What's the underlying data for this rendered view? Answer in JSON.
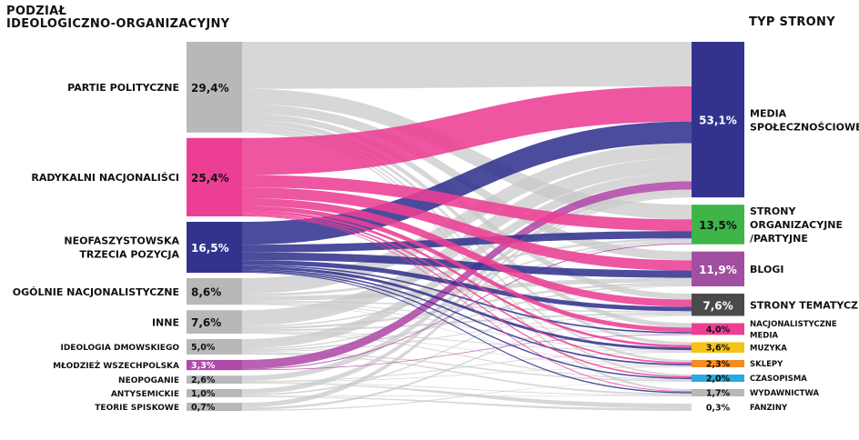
{
  "headers": {
    "left_line1": "PODZIAŁ",
    "left_line2": "IDEOLOGICZNO-ORGANIZACYJNY",
    "right": "TYP STRONY"
  },
  "colors": {
    "gray": "#c8c8c8",
    "gray_node": "#b8b8b8",
    "pink": "#ec3f94",
    "navy": "#33338f",
    "magenta": "#b04ba8",
    "green": "#3fb549",
    "purple": "#a14fa0",
    "darkgray": "#4a4a4a",
    "yellow": "#f4c319",
    "orange": "#f58c23",
    "lightblue": "#29abe2"
  },
  "chart_data": {
    "type": "sankey",
    "title": "",
    "sources": [
      {
        "id": "partie",
        "label_lines": [
          "PARTIE POLITYCZNE"
        ],
        "value_label": "29,4%",
        "value": 29.4,
        "color": "#b8b8b8",
        "flow_color": "#c8c8c8",
        "text_color": "#111"
      },
      {
        "id": "radykalni",
        "label_lines": [
          "RADYKALNI NACJONALIŚCI"
        ],
        "value_label": "25,4%",
        "value": 25.4,
        "color": "#ec3f94",
        "flow_color": "#ec3f94",
        "text_color": "#111"
      },
      {
        "id": "neofaszyst",
        "label_lines": [
          "NEOFASZYSTOWSKA",
          "TRZECIA POZYCJA"
        ],
        "value_label": "16,5%",
        "value": 16.5,
        "color": "#33338f",
        "flow_color": "#33338f",
        "text_color": "#ffffff"
      },
      {
        "id": "ogolnie",
        "label_lines": [
          "OGÓLNIE NACJONALISTYCZNE"
        ],
        "value_label": "8,6%",
        "value": 8.6,
        "color": "#b8b8b8",
        "flow_color": "#c8c8c8",
        "text_color": "#111"
      },
      {
        "id": "inne",
        "label_lines": [
          "INNE"
        ],
        "value_label": "7,6%",
        "value": 7.6,
        "color": "#b8b8b8",
        "flow_color": "#c8c8c8",
        "text_color": "#111"
      },
      {
        "id": "dmowski",
        "label_lines": [
          "IDEOLOGIA DMOWSKIEGO"
        ],
        "value_label": "5,0%",
        "value": 5.0,
        "color": "#b8b8b8",
        "flow_color": "#c8c8c8",
        "text_color": "#111"
      },
      {
        "id": "mlodziez",
        "label_lines": [
          "MŁODZIEŻ WSZECHPOLSKA"
        ],
        "value_label": "3,3%",
        "value": 3.3,
        "color": "#b04ba8",
        "flow_color": "#b04ba8",
        "text_color": "#ffffff"
      },
      {
        "id": "neopoganie",
        "label_lines": [
          "NEOPOGANIE"
        ],
        "value_label": "2,6%",
        "value": 2.6,
        "color": "#b8b8b8",
        "flow_color": "#c8c8c8",
        "text_color": "#111"
      },
      {
        "id": "antysemickie",
        "label_lines": [
          "ANTYSEMICKIE"
        ],
        "value_label": "1,0%",
        "value": 1.0,
        "color": "#b8b8b8",
        "flow_color": "#c8c8c8",
        "text_color": "#111"
      },
      {
        "id": "spiskowe",
        "label_lines": [
          "TEORIE SPISKOWE"
        ],
        "value_label": "0,7%",
        "value": 0.7,
        "color": "#b8b8b8",
        "flow_color": "#c8c8c8",
        "text_color": "#111"
      }
    ],
    "targets": [
      {
        "id": "media_spol",
        "label_lines": [
          "MEDIA",
          "SPOŁECZNOŚCIOWE"
        ],
        "value_label": "53,1%",
        "value": 53.1,
        "color": "#33338f",
        "text_color": "#ffffff"
      },
      {
        "id": "strony_org",
        "label_lines": [
          "STRONY",
          "ORGANIZACYJNE",
          "/PARTYJNE"
        ],
        "value_label": "13,5%",
        "value": 13.5,
        "color": "#3fb549",
        "text_color": "#111"
      },
      {
        "id": "blogi",
        "label_lines": [
          "BLOGI"
        ],
        "value_label": "11,9%",
        "value": 11.9,
        "color": "#a14fa0",
        "text_color": "#ffffff"
      },
      {
        "id": "strony_tem",
        "label_lines": [
          "STRONY TEMATYCZNE"
        ],
        "value_label": "7,6%",
        "value": 7.6,
        "color": "#4a4a4a",
        "text_color": "#ffffff"
      },
      {
        "id": "nacj_media",
        "label_lines": [
          "NACJONALISTYCZNE",
          "MEDIA"
        ],
        "value_label": "4,0%",
        "value": 4.0,
        "color": "#ec3f94",
        "text_color": "#111"
      },
      {
        "id": "muzyka",
        "label_lines": [
          "MUZYKA"
        ],
        "value_label": "3,6%",
        "value": 3.6,
        "color": "#f4c319",
        "text_color": "#111"
      },
      {
        "id": "sklepy",
        "label_lines": [
          "SKLEPY"
        ],
        "value_label": "2,3%",
        "value": 2.3,
        "color": "#f58c23",
        "text_color": "#111"
      },
      {
        "id": "czasopisma",
        "label_lines": [
          "CZASOPISMA"
        ],
        "value_label": "2,0%",
        "value": 2.0,
        "color": "#29abe2",
        "text_color": "#111"
      },
      {
        "id": "wydawnictwa",
        "label_lines": [
          "WYDAWNICTWA"
        ],
        "value_label": "1,7%",
        "value": 1.7,
        "color": "#b8b8b8",
        "text_color": "#111"
      },
      {
        "id": "fanziny",
        "label_lines": [
          "FANZINY"
        ],
        "value_label": "0,3%",
        "value": 0.3,
        "color": "#ffffff",
        "text_color": "#111"
      }
    ],
    "flows": [
      {
        "source": "partie",
        "target": "media_spol",
        "value": 15.2
      },
      {
        "source": "partie",
        "target": "strony_org",
        "value": 5.0
      },
      {
        "source": "partie",
        "target": "blogi",
        "value": 3.0
      },
      {
        "source": "partie",
        "target": "strony_tem",
        "value": 2.0
      },
      {
        "source": "partie",
        "target": "nacj_media",
        "value": 1.5
      },
      {
        "source": "partie",
        "target": "muzyka",
        "value": 1.0
      },
      {
        "source": "partie",
        "target": "sklepy",
        "value": 0.7
      },
      {
        "source": "partie",
        "target": "czasopisma",
        "value": 0.5
      },
      {
        "source": "partie",
        "target": "wydawnictwa",
        "value": 0.5
      },
      {
        "source": "radykalni",
        "target": "media_spol",
        "value": 12.0
      },
      {
        "source": "radykalni",
        "target": "strony_org",
        "value": 4.0
      },
      {
        "source": "radykalni",
        "target": "blogi",
        "value": 3.5
      },
      {
        "source": "radykalni",
        "target": "strony_tem",
        "value": 2.5
      },
      {
        "source": "radykalni",
        "target": "nacj_media",
        "value": 1.5
      },
      {
        "source": "radykalni",
        "target": "muzyka",
        "value": 0.8
      },
      {
        "source": "radykalni",
        "target": "sklepy",
        "value": 0.5
      },
      {
        "source": "radykalni",
        "target": "czasopisma",
        "value": 0.4
      },
      {
        "source": "radykalni",
        "target": "wydawnictwa",
        "value": 0.2
      },
      {
        "source": "neofaszyst",
        "target": "media_spol",
        "value": 7.4
      },
      {
        "source": "neofaszyst",
        "target": "strony_org",
        "value": 2.5
      },
      {
        "source": "neofaszyst",
        "target": "blogi",
        "value": 2.5
      },
      {
        "source": "neofaszyst",
        "target": "strony_tem",
        "value": 1.5
      },
      {
        "source": "neofaszyst",
        "target": "nacj_media",
        "value": 0.5
      },
      {
        "source": "neofaszyst",
        "target": "muzyka",
        "value": 0.9
      },
      {
        "source": "neofaszyst",
        "target": "sklepy",
        "value": 0.5
      },
      {
        "source": "neofaszyst",
        "target": "czasopisma",
        "value": 0.4
      },
      {
        "source": "neofaszyst",
        "target": "wydawnictwa",
        "value": 0.3
      },
      {
        "source": "ogolnie",
        "target": "media_spol",
        "value": 5.0
      },
      {
        "source": "ogolnie",
        "target": "strony_org",
        "value": 0.8
      },
      {
        "source": "ogolnie",
        "target": "blogi",
        "value": 1.5
      },
      {
        "source": "ogolnie",
        "target": "strony_tem",
        "value": 0.5
      },
      {
        "source": "ogolnie",
        "target": "nacj_media",
        "value": 0.3
      },
      {
        "source": "ogolnie",
        "target": "muzyka",
        "value": 0.3
      },
      {
        "source": "ogolnie",
        "target": "sklepy",
        "value": 0.2
      },
      {
        "source": "inne",
        "target": "media_spol",
        "value": 5.0
      },
      {
        "source": "inne",
        "target": "strony_org",
        "value": 0.5
      },
      {
        "source": "inne",
        "target": "blogi",
        "value": 0.7
      },
      {
        "source": "inne",
        "target": "strony_tem",
        "value": 0.6
      },
      {
        "source": "inne",
        "target": "muzyka",
        "value": 0.3
      },
      {
        "source": "inne",
        "target": "sklepy",
        "value": 0.2
      },
      {
        "source": "inne",
        "target": "czasopisma",
        "value": 0.3
      },
      {
        "source": "dmowski",
        "target": "media_spol",
        "value": 3.0
      },
      {
        "source": "dmowski",
        "target": "strony_org",
        "value": 0.4
      },
      {
        "source": "dmowski",
        "target": "blogi",
        "value": 0.5
      },
      {
        "source": "dmowski",
        "target": "strony_tem",
        "value": 0.3
      },
      {
        "source": "dmowski",
        "target": "czasopisma",
        "value": 0.4
      },
      {
        "source": "dmowski",
        "target": "wydawnictwa",
        "value": 0.4
      },
      {
        "source": "mlodziez",
        "target": "media_spol",
        "value": 2.8
      },
      {
        "source": "mlodziez",
        "target": "strony_org",
        "value": 0.3
      },
      {
        "source": "mlodziez",
        "target": "nacj_media",
        "value": 0.2
      },
      {
        "source": "neopoganie",
        "target": "media_spol",
        "value": 1.7
      },
      {
        "source": "neopoganie",
        "target": "muzyka",
        "value": 0.3
      },
      {
        "source": "neopoganie",
        "target": "sklepy",
        "value": 0.2
      },
      {
        "source": "neopoganie",
        "target": "wydawnictwa",
        "value": 0.2
      },
      {
        "source": "neopoganie",
        "target": "fanziny",
        "value": 0.2
      },
      {
        "source": "antysemickie",
        "target": "media_spol",
        "value": 0.6
      },
      {
        "source": "antysemickie",
        "target": "blogi",
        "value": 0.2
      },
      {
        "source": "antysemickie",
        "target": "wydawnictwa",
        "value": 0.1
      },
      {
        "source": "antysemickie",
        "target": "fanziny",
        "value": 0.1
      },
      {
        "source": "spiskowe",
        "target": "media_spol",
        "value": 0.4
      },
      {
        "source": "spiskowe",
        "target": "strony_tem",
        "value": 0.2
      },
      {
        "source": "spiskowe",
        "target": "czasopisma",
        "value": 0.1
      }
    ]
  }
}
